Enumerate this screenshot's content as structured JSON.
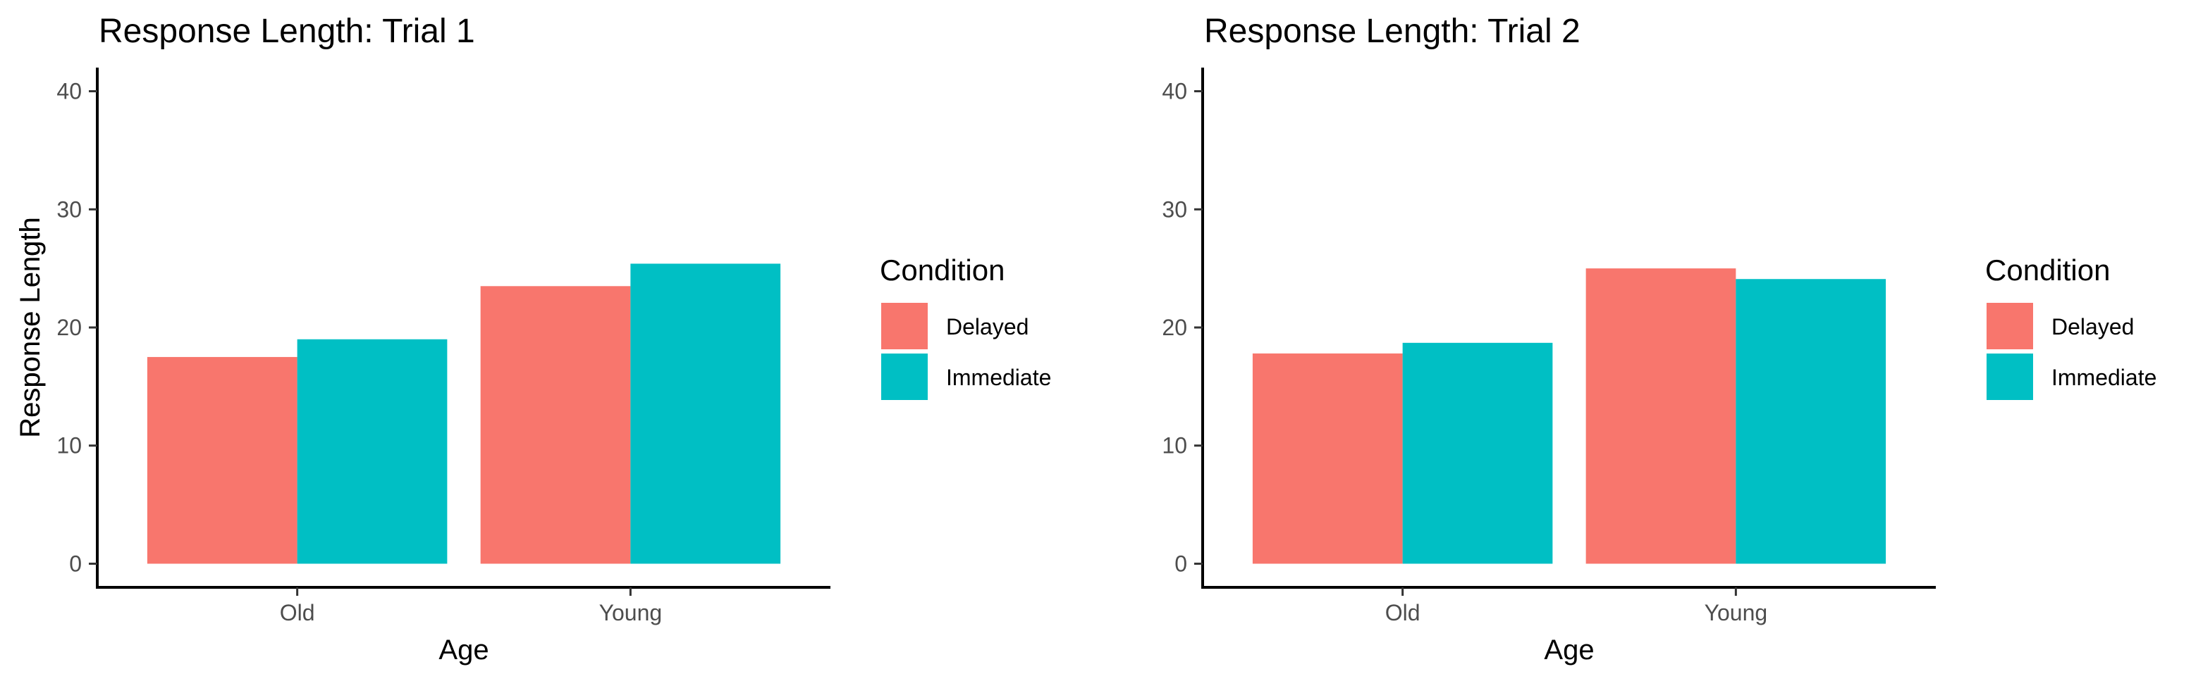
{
  "chart_data": [
    {
      "type": "bar",
      "title": "Response Length: Trial 1",
      "xlabel": "Age",
      "ylabel": "Response Length",
      "categories": [
        "Old",
        "Young"
      ],
      "ylim": [
        -2,
        42
      ],
      "yticks": [
        0,
        10,
        20,
        30,
        40
      ],
      "grid": false,
      "series": [
        {
          "name": "Delayed",
          "color": "#F8766D",
          "values": [
            17.5,
            23.5
          ]
        },
        {
          "name": "Immediate",
          "color": "#00BFC4",
          "values": [
            19.0,
            25.4
          ]
        }
      ],
      "legend": {
        "title": "Condition",
        "position": "right"
      }
    },
    {
      "type": "bar",
      "title": "Response Length: Trial 2",
      "xlabel": "Age",
      "ylabel": "Response Length",
      "categories": [
        "Old",
        "Young"
      ],
      "ylim": [
        -2,
        42
      ],
      "yticks": [
        0,
        10,
        20,
        30,
        40
      ],
      "grid": false,
      "series": [
        {
          "name": "Delayed",
          "color": "#F8766D",
          "values": [
            17.8,
            25.0
          ]
        },
        {
          "name": "Immediate",
          "color": "#00BFC4",
          "values": [
            18.7,
            24.1
          ]
        }
      ],
      "legend": {
        "title": "Condition",
        "position": "right"
      }
    }
  ]
}
